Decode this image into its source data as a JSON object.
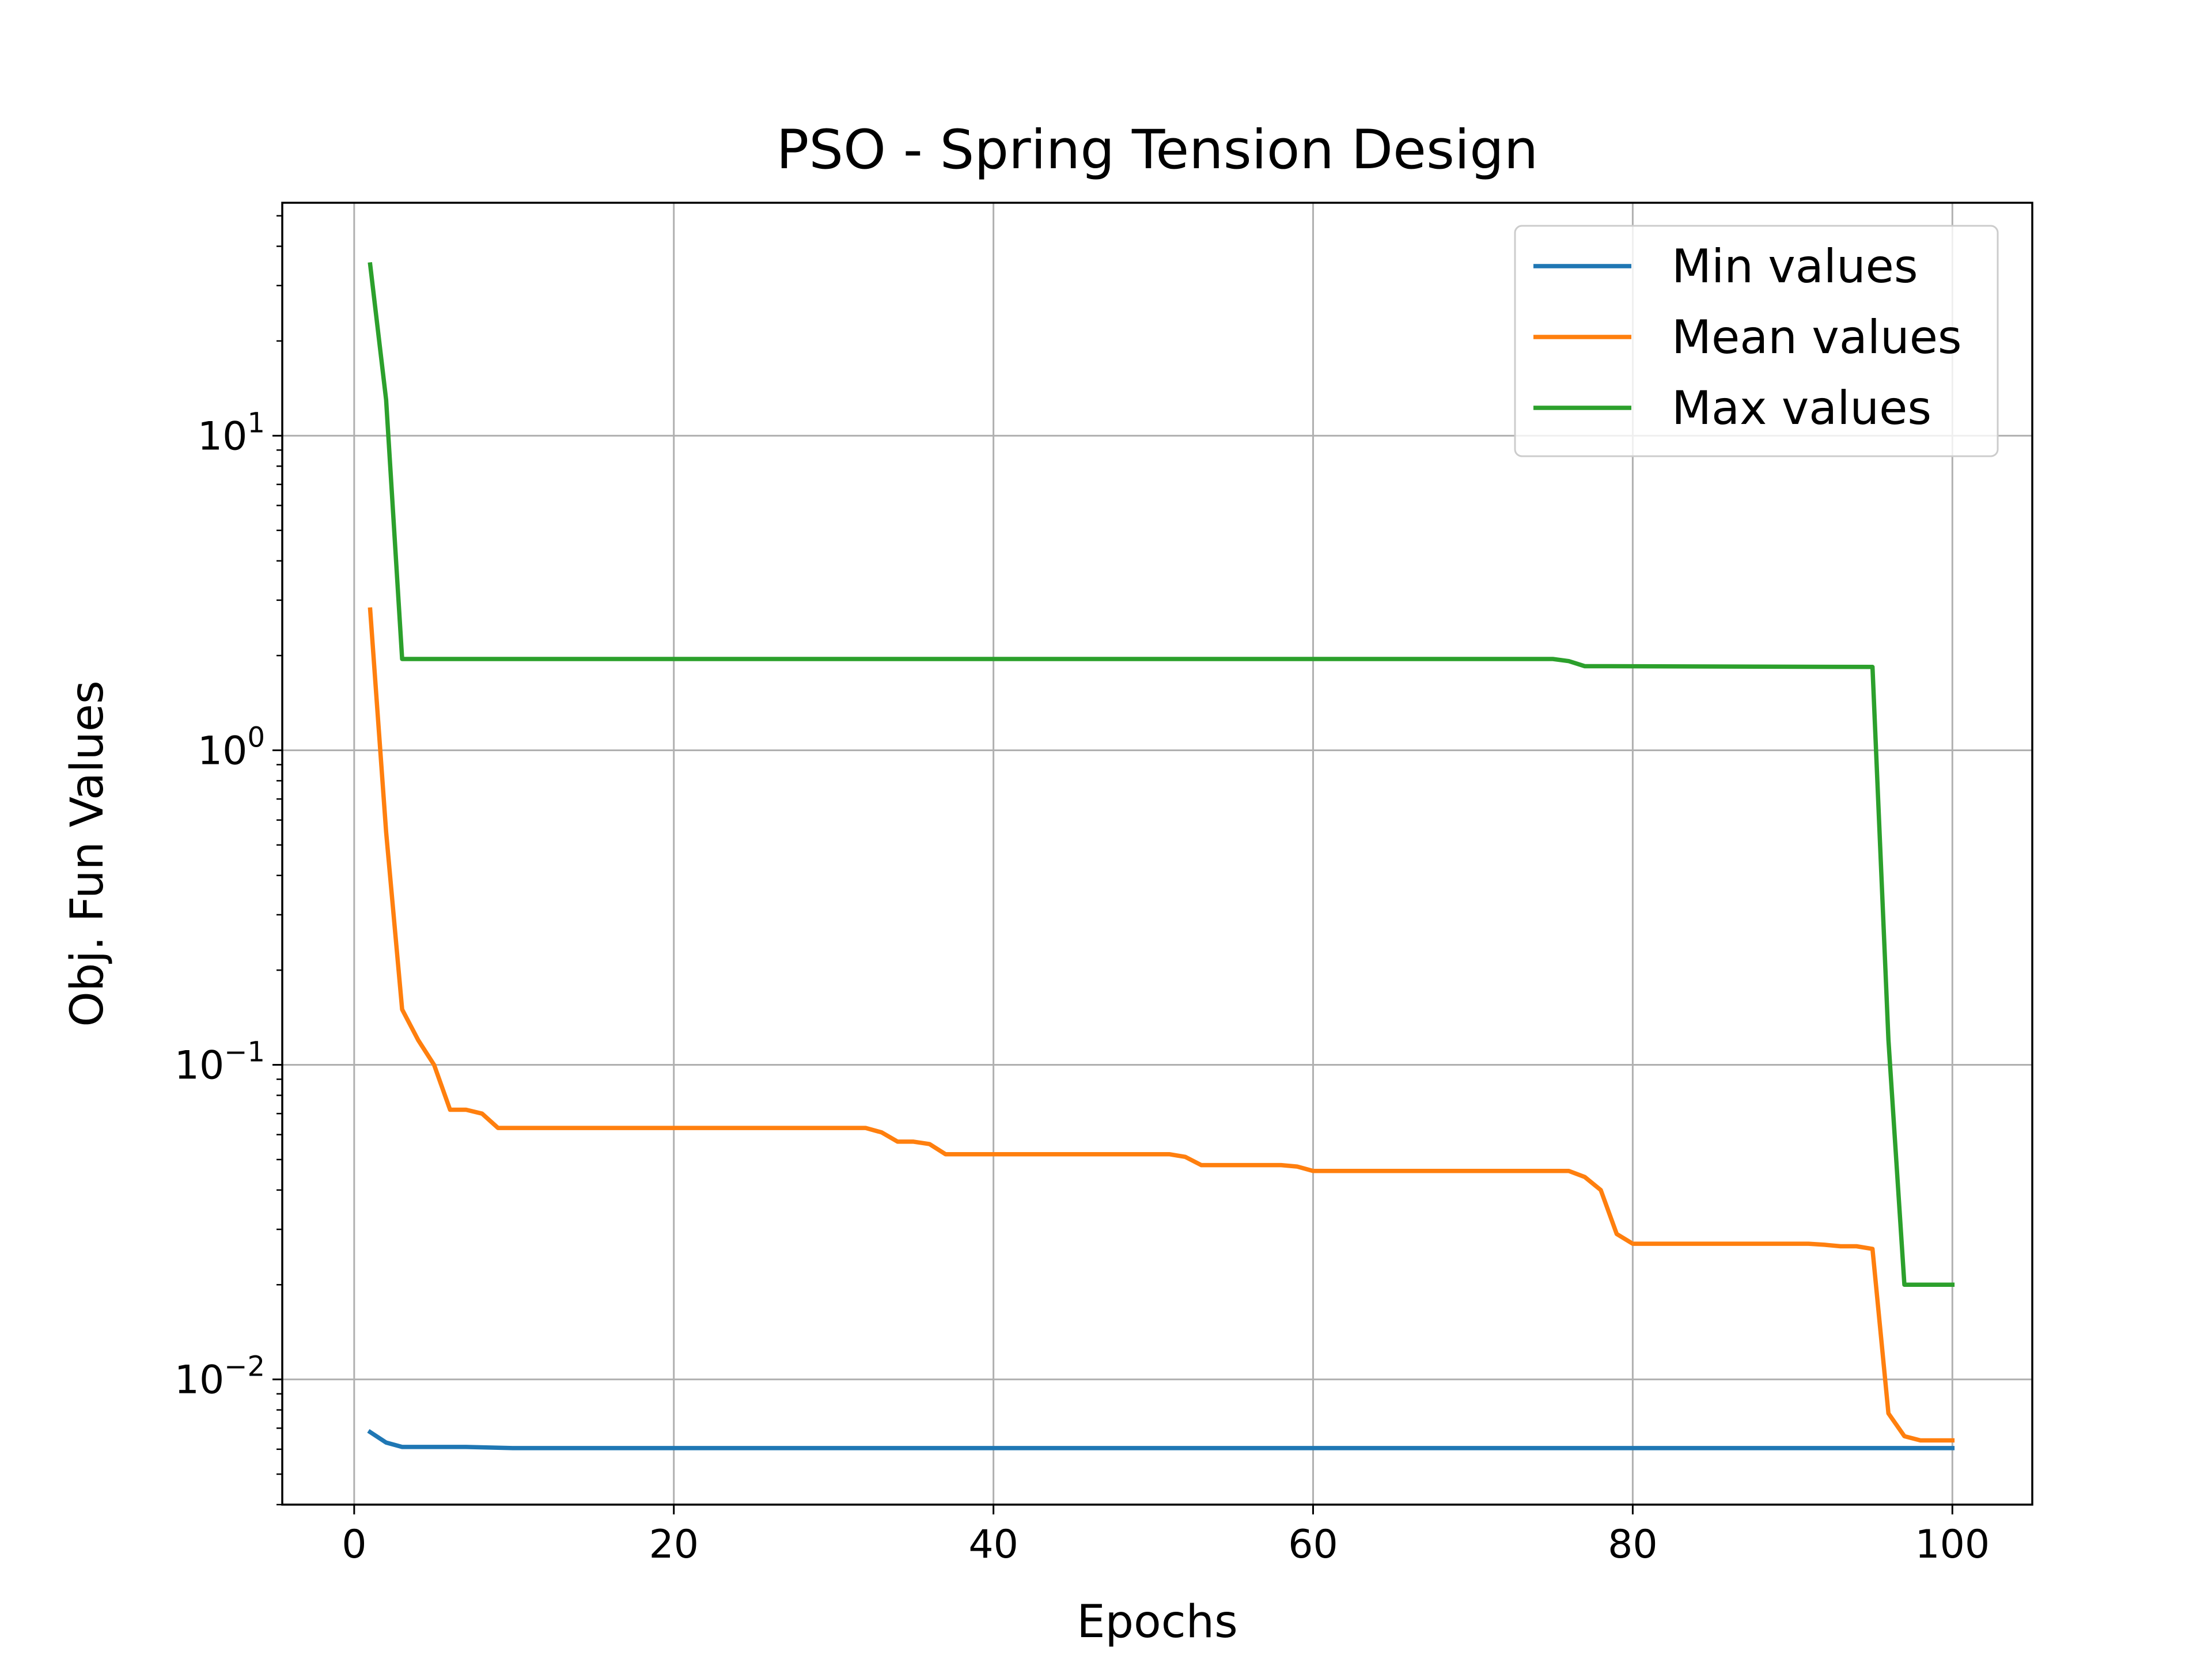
{
  "chart_data": {
    "type": "line",
    "title": "PSO - Spring Tension Design",
    "xlabel": "Epochs",
    "ylabel": "Obj. Fun Values",
    "yscale": "log",
    "xlim": [
      -4.5,
      105
    ],
    "ylim": [
      0.004,
      55
    ],
    "x_ticks": [
      0,
      20,
      40,
      60,
      80,
      100
    ],
    "x_tick_labels": [
      "0",
      "20",
      "40",
      "60",
      "80",
      "100"
    ],
    "y_ticks": [
      0.01,
      0.1,
      1,
      10
    ],
    "y_tick_labels": [
      {
        "base": "10",
        "exp": "−2"
      },
      {
        "base": "10",
        "exp": "−1"
      },
      {
        "base": "10",
        "exp": "0"
      },
      {
        "base": "10",
        "exp": "1"
      }
    ],
    "grid": true,
    "legend_position": "top-right",
    "series": [
      {
        "name": "Min values",
        "color": "#1f77b4",
        "points": [
          [
            1,
            0.0068
          ],
          [
            2,
            0.0063
          ],
          [
            3,
            0.0061
          ],
          [
            7,
            0.0061
          ],
          [
            10,
            0.00605
          ],
          [
            100,
            0.00605
          ]
        ]
      },
      {
        "name": "Mean values",
        "color": "#ff7f0e",
        "points": [
          [
            1,
            2.8
          ],
          [
            2,
            0.55
          ],
          [
            3,
            0.15
          ],
          [
            4,
            0.12
          ],
          [
            5,
            0.1
          ],
          [
            6,
            0.072
          ],
          [
            7,
            0.072
          ],
          [
            8,
            0.07
          ],
          [
            9,
            0.063
          ],
          [
            10,
            0.063
          ],
          [
            32,
            0.063
          ],
          [
            33,
            0.061
          ],
          [
            34,
            0.057
          ],
          [
            35,
            0.057
          ],
          [
            36,
            0.056
          ],
          [
            37,
            0.052
          ],
          [
            51,
            0.052
          ],
          [
            52,
            0.051
          ],
          [
            53,
            0.048
          ],
          [
            58,
            0.048
          ],
          [
            59,
            0.0475
          ],
          [
            60,
            0.046
          ],
          [
            75,
            0.046
          ],
          [
            76,
            0.046
          ],
          [
            77,
            0.044
          ],
          [
            78,
            0.04
          ],
          [
            79,
            0.029
          ],
          [
            80,
            0.027
          ],
          [
            91,
            0.027
          ],
          [
            92,
            0.0268
          ],
          [
            93,
            0.0265
          ],
          [
            94,
            0.0265
          ],
          [
            95,
            0.026
          ],
          [
            96,
            0.0078
          ],
          [
            97,
            0.0066
          ],
          [
            98,
            0.0064
          ],
          [
            100,
            0.0064
          ]
        ]
      },
      {
        "name": "Max values",
        "color": "#2ca02c",
        "points": [
          [
            1,
            35
          ],
          [
            2,
            13
          ],
          [
            3,
            1.95
          ],
          [
            75,
            1.95
          ],
          [
            76,
            1.92
          ],
          [
            77,
            1.85
          ],
          [
            78,
            1.85
          ],
          [
            95,
            1.84
          ],
          [
            96,
            0.12
          ],
          [
            97,
            0.02
          ],
          [
            100,
            0.02
          ]
        ]
      }
    ]
  }
}
